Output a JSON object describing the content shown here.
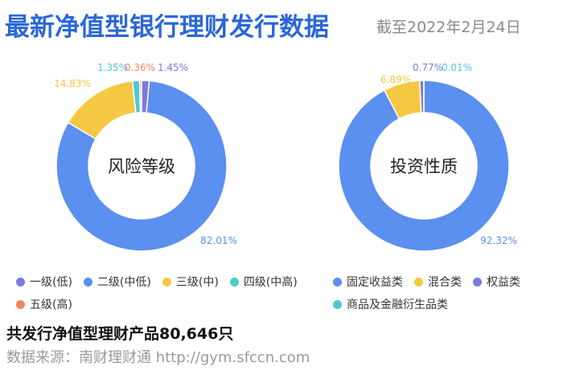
{
  "header": {
    "title": "最新净值型银行理财发行数据",
    "date": "截至2022年2月24日"
  },
  "chart_data": [
    {
      "type": "pie",
      "center_label": "风险等级",
      "slices": [
        {
          "name": "一级(低)",
          "value": 1.45,
          "label": "1.45%",
          "color": "#7b79e0"
        },
        {
          "name": "二级(中低)",
          "value": 82.01,
          "label": "82.01%",
          "color": "#5b8ff0"
        },
        {
          "name": "三级(中)",
          "value": 14.83,
          "label": "14.83%",
          "color": "#f5c842"
        },
        {
          "name": "四级(中高)",
          "value": 1.35,
          "label": "1.35%",
          "color": "#4ec9d0"
        },
        {
          "name": "五级(高)",
          "value": 0.36,
          "label": "0.36%",
          "color": "#f0875c"
        }
      ]
    },
    {
      "type": "pie",
      "center_label": "投资性质",
      "slices": [
        {
          "name": "固定收益类",
          "value": 92.32,
          "label": "92.32%",
          "color": "#5b8ff0"
        },
        {
          "name": "混合类",
          "value": 6.89,
          "label": "6.89%",
          "color": "#f5c842"
        },
        {
          "name": "权益类",
          "value": 0.77,
          "label": "0.77%",
          "color": "#7b79e0"
        },
        {
          "name": "商品及金融衍生品类",
          "value": 0.01,
          "label": "0.01%",
          "color": "#4ec9d0"
        }
      ]
    }
  ],
  "footer": {
    "total": "共发行净值型理财产品80,646只",
    "source": "数据来源：南财理财通 http://gym.sfccn.com"
  }
}
